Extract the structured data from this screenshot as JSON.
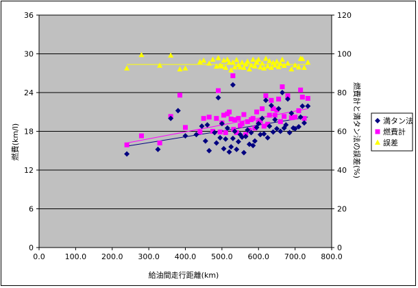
{
  "chart_data": {
    "type": "scatter",
    "xlabel": "給油間走行距離(km)",
    "ylabel_left": "燃費(km/l)",
    "ylabel_right": "燃費計と満タン法の誤差(%)",
    "xlim": [
      0,
      800
    ],
    "ylim_left": [
      0,
      36
    ],
    "ylim_right": [
      0,
      120
    ],
    "x_ticks": [
      "0.0",
      "100.0",
      "200.0",
      "300.0",
      "400.0",
      "500.0",
      "600.0",
      "700.0",
      "800.0"
    ],
    "y_left_ticks": [
      "0",
      "6",
      "12",
      "18",
      "24",
      "30",
      "36"
    ],
    "y_right_ticks": [
      "0",
      "20",
      "40",
      "60",
      "80",
      "100",
      "120"
    ],
    "grid": "horizontal",
    "legend_position": "right",
    "series": [
      {
        "name": "満タン法",
        "axis": "left",
        "marker": "diamond",
        "color": "#000080",
        "trendline": [
          [
            240,
            15.7
          ],
          [
            735,
            20.2
          ]
        ],
        "points": [
          [
            240,
            14.5
          ],
          [
            325,
            15.2
          ],
          [
            360,
            20.0
          ],
          [
            380,
            21.2
          ],
          [
            400,
            17.3
          ],
          [
            430,
            17.5
          ],
          [
            445,
            18.8
          ],
          [
            455,
            16.5
          ],
          [
            460,
            19.0
          ],
          [
            465,
            15.0
          ],
          [
            480,
            17.8
          ],
          [
            485,
            16.2
          ],
          [
            490,
            23.2
          ],
          [
            495,
            17.0
          ],
          [
            500,
            19.2
          ],
          [
            505,
            15.3
          ],
          [
            510,
            16.8
          ],
          [
            515,
            18.5
          ],
          [
            520,
            14.8
          ],
          [
            525,
            15.6
          ],
          [
            530,
            25.2
          ],
          [
            530,
            16.9
          ],
          [
            535,
            18.0
          ],
          [
            540,
            15.2
          ],
          [
            545,
            16.4
          ],
          [
            550,
            17.5
          ],
          [
            555,
            17.1
          ],
          [
            560,
            14.7
          ],
          [
            565,
            17.2
          ],
          [
            570,
            18.2
          ],
          [
            575,
            16.0
          ],
          [
            580,
            17.8
          ],
          [
            585,
            15.8
          ],
          [
            590,
            16.5
          ],
          [
            595,
            18.6
          ],
          [
            600,
            19.2
          ],
          [
            605,
            17.5
          ],
          [
            610,
            20.0
          ],
          [
            615,
            17.6
          ],
          [
            620,
            22.8
          ],
          [
            625,
            17.0
          ],
          [
            630,
            18.8
          ],
          [
            635,
            22.0
          ],
          [
            640,
            17.9
          ],
          [
            645,
            19.8
          ],
          [
            650,
            18.4
          ],
          [
            655,
            21.5
          ],
          [
            660,
            18.0
          ],
          [
            665,
            24.0
          ],
          [
            670,
            18.5
          ],
          [
            675,
            19.0
          ],
          [
            680,
            23.0
          ],
          [
            685,
            17.8
          ],
          [
            690,
            20.8
          ],
          [
            695,
            18.5
          ],
          [
            700,
            18.4
          ],
          [
            710,
            18.7
          ],
          [
            715,
            20.2
          ],
          [
            720,
            21.9
          ],
          [
            725,
            19.3
          ],
          [
            735,
            21.9
          ]
        ]
      },
      {
        "name": "燃費計",
        "axis": "left",
        "marker": "square",
        "color": "#ff00ff",
        "trendline": [
          [
            240,
            16.2
          ],
          [
            735,
            21.5
          ]
        ],
        "points": [
          [
            240,
            15.9
          ],
          [
            280,
            17.3
          ],
          [
            330,
            16.2
          ],
          [
            360,
            20.3
          ],
          [
            385,
            23.6
          ],
          [
            400,
            18.6
          ],
          [
            440,
            17.9
          ],
          [
            450,
            20.0
          ],
          [
            465,
            20.2
          ],
          [
            475,
            18.0
          ],
          [
            485,
            20.0
          ],
          [
            490,
            24.3
          ],
          [
            495,
            17.9
          ],
          [
            500,
            19.3
          ],
          [
            505,
            20.5
          ],
          [
            510,
            17.8
          ],
          [
            515,
            20.7
          ],
          [
            520,
            21.0
          ],
          [
            525,
            19.9
          ],
          [
            530,
            26.6
          ],
          [
            532,
            18.3
          ],
          [
            535,
            19.8
          ],
          [
            540,
            17.8
          ],
          [
            545,
            20.0
          ],
          [
            550,
            18.9
          ],
          [
            555,
            19.2
          ],
          [
            560,
            20.6
          ],
          [
            565,
            17.5
          ],
          [
            570,
            19.5
          ],
          [
            575,
            18.2
          ],
          [
            580,
            19.8
          ],
          [
            585,
            20.0
          ],
          [
            590,
            18.5
          ],
          [
            595,
            21.0
          ],
          [
            600,
            19.5
          ],
          [
            605,
            19.6
          ],
          [
            610,
            21.5
          ],
          [
            615,
            18.8
          ],
          [
            620,
            23.5
          ],
          [
            625,
            19.1
          ],
          [
            630,
            20.5
          ],
          [
            635,
            22.8
          ],
          [
            640,
            21.5
          ],
          [
            645,
            20.5
          ],
          [
            650,
            21.3
          ],
          [
            655,
            23.0
          ],
          [
            660,
            19.5
          ],
          [
            665,
            24.9
          ],
          [
            670,
            20.3
          ],
          [
            680,
            23.5
          ],
          [
            690,
            20.1
          ],
          [
            700,
            20.2
          ],
          [
            710,
            21.2
          ],
          [
            715,
            24.4
          ],
          [
            720,
            23.3
          ],
          [
            725,
            20.0
          ],
          [
            735,
            23.1
          ]
        ]
      },
      {
        "name": "誤差",
        "axis": "right",
        "marker": "triangle",
        "color": "#ffff00",
        "trendline": [
          [
            240,
            94.5
          ],
          [
            735,
            94.5
          ]
        ],
        "points": [
          [
            240,
            92.5
          ],
          [
            280,
            99.4
          ],
          [
            330,
            93.9
          ],
          [
            360,
            99.1
          ],
          [
            385,
            92.0
          ],
          [
            400,
            92.5
          ],
          [
            440,
            95.8
          ],
          [
            450,
            96.5
          ],
          [
            465,
            95.0
          ],
          [
            475,
            97.0
          ],
          [
            485,
            93.4
          ],
          [
            490,
            97.8
          ],
          [
            495,
            94.0
          ],
          [
            500,
            93.5
          ],
          [
            505,
            96.5
          ],
          [
            510,
            92.8
          ],
          [
            515,
            97.0
          ],
          [
            520,
            95.5
          ],
          [
            525,
            91.5
          ],
          [
            530,
            95.5
          ],
          [
            535,
            93.0
          ],
          [
            540,
            96.8
          ],
          [
            545,
            94.2
          ],
          [
            550,
            93.0
          ],
          [
            555,
            95.5
          ],
          [
            560,
            92.8
          ],
          [
            565,
            94.5
          ],
          [
            570,
            96.0
          ],
          [
            575,
            92.0
          ],
          [
            580,
            94.0
          ],
          [
            585,
            97.0
          ],
          [
            590,
            93.5
          ],
          [
            595,
            95.8
          ],
          [
            600,
            97.0
          ],
          [
            605,
            93.0
          ],
          [
            610,
            95.0
          ],
          [
            615,
            92.5
          ],
          [
            620,
            97.5
          ],
          [
            625,
            93.5
          ],
          [
            630,
            96.2
          ],
          [
            635,
            92.8
          ],
          [
            640,
            95.3
          ],
          [
            645,
            94.0
          ],
          [
            650,
            96.0
          ],
          [
            655,
            93.2
          ],
          [
            660,
            94.8
          ],
          [
            665,
            97.0
          ],
          [
            670,
            93.8
          ],
          [
            680,
            95.0
          ],
          [
            690,
            92.0
          ],
          [
            700,
            94.0
          ],
          [
            710,
            93.0
          ],
          [
            715,
            97.5
          ],
          [
            720,
            97.3
          ],
          [
            725,
            92.8
          ],
          [
            735,
            95.5
          ]
        ]
      }
    ]
  }
}
